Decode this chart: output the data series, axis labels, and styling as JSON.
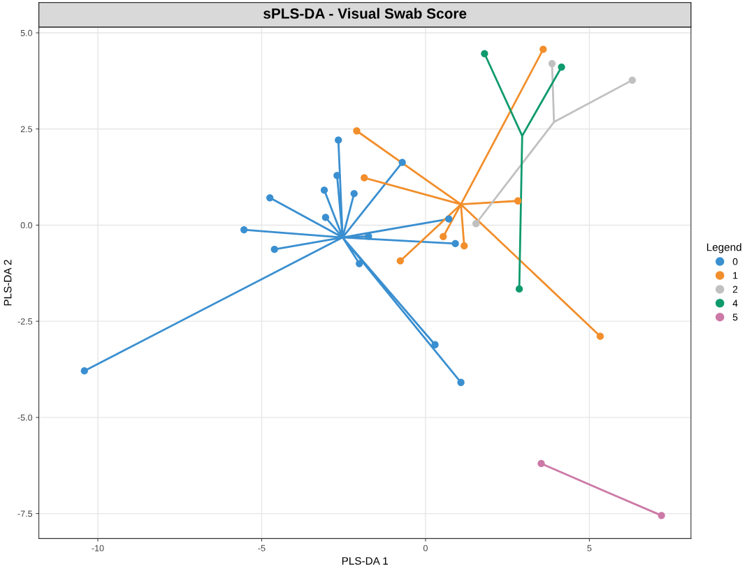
{
  "chart_data": {
    "type": "scatter",
    "title": "sPLS-DA - Visual Swab Score",
    "xlabel": "PLS-DA 1",
    "ylabel": "PLS-DA 2",
    "legend_title": "Legend",
    "legend": "right",
    "grid": true,
    "marker": "circle",
    "xlim": [
      -11.8,
      8.1
    ],
    "ylim": [
      -8.15,
      5.15
    ],
    "xticks": [
      -10,
      -5,
      0,
      5
    ],
    "yticks": [
      {
        "value": -7.5,
        "label": "-7.5"
      },
      {
        "value": -5,
        "label": "-5.0"
      },
      {
        "value": -2.5,
        "label": "-2.5"
      },
      {
        "value": 0,
        "label": "0.0"
      },
      {
        "value": 2.5,
        "label": "2.5"
      },
      {
        "value": 5,
        "label": "5.0"
      }
    ],
    "series": [
      {
        "type": "line",
        "marker": "none",
        "color": "#3a8fd0",
        "x": [
          -2.53,
          -10.41,
          -2.53,
          -5.54,
          -2.53,
          -4.75,
          -2.53,
          -4.61,
          -2.53,
          -3.09,
          -2.53,
          -3.05,
          -2.53,
          -2.7,
          -2.53,
          -2.66,
          -2.53,
          -2.18,
          -2.53,
          -2.02,
          -2.53,
          -1.74,
          -2.53,
          -0.71,
          -2.53,
          0.71,
          -2.53,
          0.91,
          -2.53,
          0.29,
          -2.53,
          1.08
        ],
        "values": [
          -0.32,
          -3.79,
          -0.32,
          -0.12,
          -0.32,
          0.71,
          -0.32,
          -0.63,
          -0.32,
          0.91,
          -0.32,
          0.2,
          -0.32,
          1.29,
          -0.32,
          2.21,
          -0.32,
          0.82,
          -0.32,
          -1.0,
          -0.32,
          -0.29,
          -0.32,
          1.63,
          -0.32,
          0.16,
          -0.32,
          -0.48,
          -0.32,
          -3.11,
          -0.32,
          -4.09
        ]
      },
      {
        "type": "line",
        "marker": "none",
        "color": "#f28e2b",
        "x": [
          1.08,
          -2.1,
          1.08,
          -1.87,
          1.08,
          -0.77,
          1.08,
          0.54,
          1.08,
          1.18,
          1.08,
          2.82,
          1.08,
          3.59,
          1.08,
          5.33
        ],
        "values": [
          0.54,
          2.45,
          0.54,
          1.23,
          0.54,
          -0.93,
          0.54,
          -0.3,
          0.54,
          -0.54,
          0.54,
          0.63,
          0.54,
          4.57,
          0.54,
          -2.89
        ]
      },
      {
        "type": "line",
        "marker": "none",
        "color": "#c0c0c0",
        "x": [
          3.92,
          1.54,
          3.92,
          3.86,
          3.92,
          6.31
        ],
        "values": [
          2.68,
          0.04,
          2.68,
          4.2,
          2.68,
          3.77
        ]
      },
      {
        "type": "line",
        "marker": "none",
        "color": "#0f9a6e",
        "x": [
          2.95,
          1.8,
          2.95,
          4.15,
          2.95,
          2.86
        ],
        "values": [
          2.32,
          4.46,
          2.32,
          4.11,
          2.32,
          -1.66
        ]
      },
      {
        "type": "line",
        "marker": "none",
        "color": "#cc79a7",
        "x": [
          5.37,
          3.53,
          5.37,
          7.2
        ],
        "values": [
          -6.88,
          -6.2,
          -6.88,
          -7.55
        ]
      },
      {
        "name": "0",
        "color": "#3a8fd0",
        "x": [
          -10.41,
          -5.54,
          -4.75,
          -4.61,
          -3.09,
          -3.05,
          -2.7,
          -2.66,
          -2.18,
          -2.02,
          -1.74,
          -0.71,
          0.71,
          0.91,
          0.29,
          1.08
        ],
        "values": [
          -3.79,
          -0.12,
          0.71,
          -0.63,
          0.91,
          0.2,
          1.29,
          2.21,
          0.82,
          -1.0,
          -0.29,
          1.63,
          0.16,
          -0.48,
          -3.11,
          -4.09
        ]
      },
      {
        "name": "1",
        "color": "#f28e2b",
        "x": [
          -2.1,
          -1.87,
          -0.77,
          0.54,
          1.18,
          2.82,
          3.59,
          5.33
        ],
        "values": [
          2.45,
          1.23,
          -0.93,
          -0.3,
          -0.54,
          0.63,
          4.57,
          -2.89
        ]
      },
      {
        "name": "2",
        "color": "#c0c0c0",
        "x": [
          1.54,
          3.86,
          6.31
        ],
        "values": [
          0.04,
          4.2,
          3.77
        ]
      },
      {
        "name": "4",
        "color": "#0f9a6e",
        "x": [
          1.8,
          4.15,
          2.86
        ],
        "values": [
          4.46,
          4.11,
          -1.66
        ]
      },
      {
        "name": "5",
        "color": "#cc79a7",
        "x": [
          3.53,
          7.2
        ],
        "values": [
          -6.2,
          -7.55
        ]
      }
    ]
  }
}
